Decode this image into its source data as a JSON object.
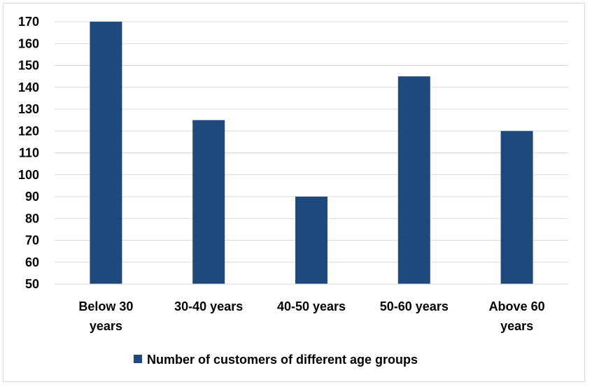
{
  "chart_data": {
    "type": "bar",
    "categories": [
      "Below 30 years",
      "30-40 years",
      "40-50 years",
      "50-60 years",
      "Above 60 years"
    ],
    "category_lines": [
      [
        "Below 30",
        "years"
      ],
      [
        "30-40 years"
      ],
      [
        "40-50 years"
      ],
      [
        "50-60 years"
      ],
      [
        "Above 60",
        "years"
      ]
    ],
    "series": [
      {
        "name": "Number of customers of different age groups",
        "values": [
          170,
          125,
          90,
          145,
          120
        ],
        "color": "#1f497d"
      }
    ],
    "ylim": [
      50,
      170
    ],
    "yticks": [
      50,
      60,
      70,
      80,
      90,
      100,
      110,
      120,
      130,
      140,
      150,
      160,
      170
    ],
    "grid": true,
    "gridColor": "#d9d9d9",
    "legend": "bottom",
    "title": "",
    "xlabel": "",
    "ylabel": ""
  }
}
